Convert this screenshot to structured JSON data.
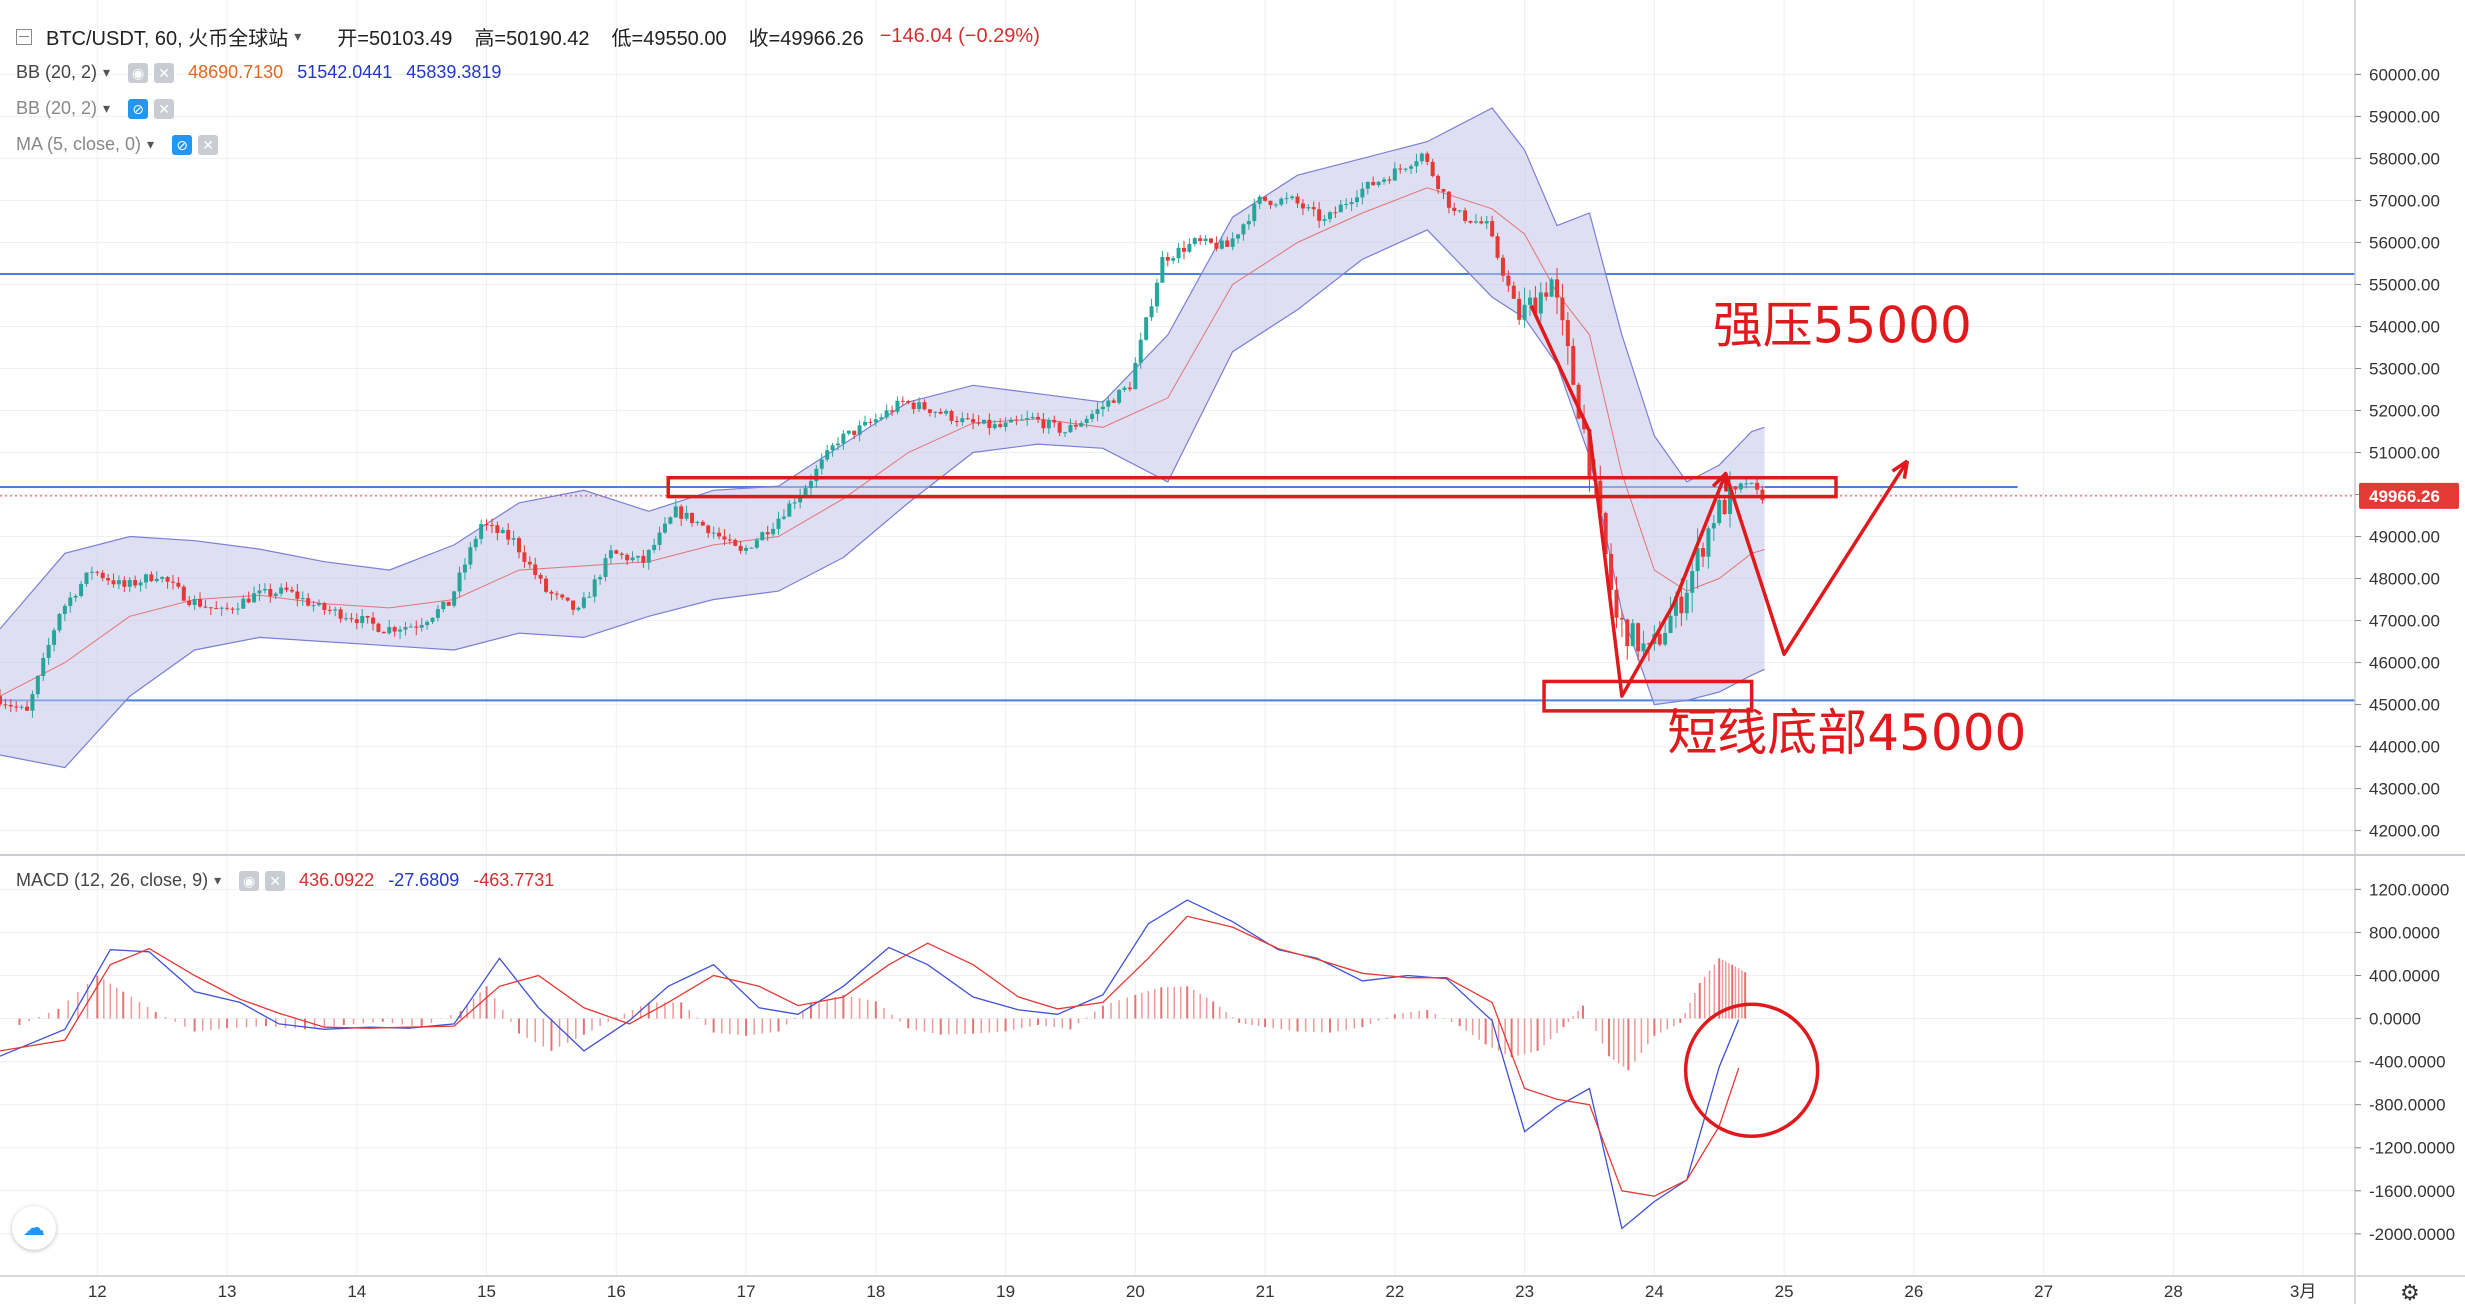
{
  "header": {
    "symbol": "BTC/USDT, 60, 火币全球站",
    "open_label": "开=50103.49",
    "high_label": "高=50190.42",
    "low_label": "低=49550.00",
    "close_label": "收=49966.26",
    "change_label": "−146.04 (−0.29%)"
  },
  "indicators": {
    "bb1": {
      "label": "BB (20, 2)",
      "basis": "48690.7130",
      "upper": "51542.0441",
      "lower": "45839.3819"
    },
    "bb2": {
      "label": "BB (20, 2)"
    },
    "ma": {
      "label": "MA (5, close, 0)"
    },
    "macd": {
      "label": "MACD (12, 26, close, 9)",
      "hist": "436.0922",
      "macd": "-27.6809",
      "signal": "-463.7731"
    }
  },
  "icons": {
    "collapse": "collapse-square-icon",
    "chevron": "chevron-down-icon",
    "eye": "eye-icon",
    "eye_off": "eye-off-icon",
    "close": "close-icon",
    "logo": "cloud-logo-icon",
    "settings": "gear-icon"
  },
  "colors": {
    "up": "#26a69a",
    "down": "#e53935",
    "band_fill": "#c5c4ea",
    "band_line": "#7b7fd6",
    "annotation": "#e0191c",
    "hline": "#4a7ee3",
    "macd_line": "#3f51d6",
    "signal_line": "#e53935",
    "price_tag": "#e53935"
  },
  "annotations": {
    "resistance": "强压55000",
    "support": "短线底部45000"
  },
  "chart_data": [
    {
      "type": "candlestick",
      "title": "",
      "x_ticks": [
        "12",
        "13",
        "14",
        "15",
        "16",
        "17",
        "18",
        "19",
        "20",
        "21",
        "22",
        "23",
        "24",
        "25",
        "26",
        "27",
        "28",
        "3月"
      ],
      "y_ticks": [
        "60000.00",
        "59000.00",
        "58000.00",
        "57000.00",
        "56000.00",
        "55000.00",
        "54000.00",
        "53000.00",
        "52000.00",
        "51000.00",
        "50000.00",
        "49000.00",
        "48000.00",
        "47000.00",
        "46000.00",
        "45000.00",
        "44000.00",
        "43000.00",
        "42000.00"
      ],
      "ylim": [
        41800,
        61200
      ],
      "xlim": [
        11.25,
        29.4
      ],
      "last_price": "49966.26",
      "horizontal_lines": [
        55250,
        50180,
        45100
      ],
      "price_path": [
        [
          11.25,
          45200
        ],
        [
          11.5,
          44800
        ],
        [
          11.75,
          47200
        ],
        [
          12.0,
          48200
        ],
        [
          12.25,
          47800
        ],
        [
          12.5,
          48100
        ],
        [
          12.75,
          47500
        ],
        [
          13.0,
          47200
        ],
        [
          13.25,
          47600
        ],
        [
          13.5,
          47700
        ],
        [
          13.75,
          47300
        ],
        [
          14.0,
          47100
        ],
        [
          14.25,
          46800
        ],
        [
          14.5,
          46900
        ],
        [
          14.75,
          47400
        ],
        [
          15.0,
          49300
        ],
        [
          15.25,
          48900
        ],
        [
          15.5,
          47700
        ],
        [
          15.75,
          47200
        ],
        [
          16.0,
          48600
        ],
        [
          16.25,
          48400
        ],
        [
          16.5,
          49600
        ],
        [
          16.75,
          49200
        ],
        [
          17.0,
          48600
        ],
        [
          17.25,
          49300
        ],
        [
          17.5,
          50200
        ],
        [
          17.75,
          51300
        ],
        [
          18.0,
          51700
        ],
        [
          18.25,
          52200
        ],
        [
          18.5,
          52000
        ],
        [
          18.75,
          51700
        ],
        [
          19.0,
          51600
        ],
        [
          19.25,
          51800
        ],
        [
          19.5,
          51500
        ],
        [
          19.75,
          52000
        ],
        [
          20.0,
          52600
        ],
        [
          20.25,
          55600
        ],
        [
          20.5,
          56000
        ],
        [
          20.75,
          55900
        ],
        [
          21.0,
          57000
        ],
        [
          21.25,
          57000
        ],
        [
          21.5,
          56500
        ],
        [
          21.75,
          57200
        ],
        [
          22.0,
          57600
        ],
        [
          22.25,
          58100
        ],
        [
          22.5,
          56700
        ],
        [
          22.75,
          56400
        ],
        [
          23.0,
          54200
        ],
        [
          23.25,
          55100
        ],
        [
          23.5,
          51500
        ],
        [
          23.75,
          47000
        ],
        [
          24.0,
          46200
        ],
        [
          24.25,
          47500
        ],
        [
          24.5,
          49500
        ],
        [
          24.75,
          50300
        ],
        [
          24.85,
          49966
        ]
      ],
      "bollinger": {
        "x": [
          11.25,
          11.75,
          12.25,
          12.75,
          13.25,
          13.75,
          14.25,
          14.75,
          15.25,
          15.75,
          16.25,
          16.75,
          17.25,
          17.75,
          18.25,
          18.75,
          19.25,
          19.75,
          20.25,
          20.75,
          21.25,
          21.75,
          22.25,
          22.75,
          23.0,
          23.25,
          23.5,
          23.75,
          24.0,
          24.25,
          24.5,
          24.75,
          24.85
        ],
        "upper": [
          46800,
          48600,
          49000,
          48900,
          48700,
          48400,
          48200,
          48800,
          49800,
          50100,
          49600,
          50100,
          50200,
          51200,
          52200,
          52600,
          52400,
          52200,
          53800,
          56600,
          57600,
          58000,
          58400,
          59200,
          58200,
          56400,
          56700,
          53800,
          51400,
          50300,
          50700,
          51500,
          51600
        ],
        "basis": [
          45200,
          46000,
          47100,
          47500,
          47600,
          47400,
          47300,
          47500,
          48200,
          48300,
          48400,
          48800,
          49000,
          49900,
          51000,
          51700,
          51800,
          51600,
          52300,
          55000,
          56000,
          56700,
          57300,
          56800,
          56200,
          54800,
          53800,
          50500,
          48200,
          47700,
          48000,
          48600,
          48690
        ],
        "lower": [
          43800,
          43500,
          45200,
          46300,
          46600,
          46500,
          46400,
          46300,
          46700,
          46600,
          47100,
          47500,
          47700,
          48500,
          49800,
          51000,
          51200,
          51100,
          50300,
          53400,
          54400,
          55600,
          56300,
          54700,
          54200,
          53100,
          50900,
          47200,
          45000,
          45100,
          45300,
          45700,
          45840
        ]
      },
      "drawn_path": [
        [
          23.05,
          54500
        ],
        [
          23.5,
          51500
        ],
        [
          23.75,
          45200
        ],
        [
          24.15,
          47400
        ],
        [
          24.55,
          50500
        ],
        [
          25.0,
          46200
        ],
        [
          25.95,
          50800
        ]
      ],
      "boxes": [
        {
          "x0": 16.4,
          "x1": 25.4,
          "y0": 49950,
          "y1": 50400
        },
        {
          "x0": 23.15,
          "x1": 24.75,
          "y0": 44850,
          "y1": 45550
        }
      ]
    },
    {
      "type": "line",
      "title": "",
      "y_ticks": [
        "1200.0000",
        "800.0000",
        "400.0000",
        "0.0000",
        "-400.0000",
        "-800.0000",
        "-1200.0000",
        "-1600.0000",
        "-2000.0000"
      ],
      "ylim": [
        -2280,
        1380
      ],
      "x": [
        11.25,
        11.75,
        12.1,
        12.4,
        12.75,
        13.1,
        13.4,
        13.75,
        14.1,
        14.4,
        14.75,
        15.1,
        15.4,
        15.75,
        16.1,
        16.4,
        16.75,
        17.1,
        17.4,
        17.75,
        18.1,
        18.4,
        18.75,
        19.1,
        19.4,
        19.75,
        20.1,
        20.4,
        20.75,
        21.1,
        21.4,
        21.75,
        22.1,
        22.4,
        22.75,
        23.0,
        23.25,
        23.5,
        23.75,
        24.0,
        24.25,
        24.5,
        24.65
      ],
      "series": [
        {
          "values": [
            -350,
            -100,
            640,
            620,
            250,
            150,
            -50,
            -100,
            -80,
            -90,
            -50,
            560,
            100,
            -300,
            -20,
            300,
            500,
            100,
            40,
            300,
            660,
            500,
            200,
            80,
            40,
            220,
            880,
            1100,
            900,
            640,
            560,
            350,
            400,
            370,
            -20,
            -1050,
            -820,
            -650,
            -1950,
            -1700,
            -1500,
            -450,
            -10
          ]
        },
        {
          "values": [
            -300,
            -200,
            500,
            650,
            400,
            180,
            50,
            -80,
            -90,
            -80,
            -70,
            300,
            400,
            100,
            -50,
            150,
            400,
            300,
            120,
            200,
            500,
            700,
            500,
            200,
            90,
            150,
            560,
            950,
            850,
            650,
            550,
            420,
            380,
            380,
            150,
            -650,
            -750,
            -800,
            -1600,
            -1650,
            -1500,
            -1000,
            -460
          ]
        }
      ],
      "histogram": [
        [
          11.4,
          -60
        ],
        [
          11.7,
          90
        ],
        [
          12.0,
          400
        ],
        [
          12.2,
          250
        ],
        [
          12.45,
          60
        ],
        [
          12.75,
          -120
        ],
        [
          13.0,
          -90
        ],
        [
          13.3,
          -70
        ],
        [
          13.6,
          -100
        ],
        [
          13.9,
          -60
        ],
        [
          14.2,
          -30
        ],
        [
          14.5,
          -80
        ],
        [
          14.8,
          70
        ],
        [
          15.0,
          300
        ],
        [
          15.25,
          -140
        ],
        [
          15.5,
          -300
        ],
        [
          15.75,
          -150
        ],
        [
          16.0,
          10
        ],
        [
          16.25,
          150
        ],
        [
          16.5,
          150
        ],
        [
          16.75,
          -130
        ],
        [
          17.0,
          -160
        ],
        [
          17.25,
          -120
        ],
        [
          17.5,
          140
        ],
        [
          17.75,
          220
        ],
        [
          18.0,
          160
        ],
        [
          18.25,
          -90
        ],
        [
          18.5,
          -150
        ],
        [
          18.75,
          -140
        ],
        [
          19.0,
          -120
        ],
        [
          19.25,
          -60
        ],
        [
          19.5,
          -100
        ],
        [
          19.75,
          120
        ],
        [
          20.0,
          220
        ],
        [
          20.2,
          290
        ],
        [
          20.4,
          300
        ],
        [
          20.6,
          160
        ],
        [
          20.8,
          -40
        ],
        [
          21.0,
          -80
        ],
        [
          21.25,
          -120
        ],
        [
          21.5,
          -130
        ],
        [
          21.75,
          -80
        ],
        [
          22.0,
          40
        ],
        [
          22.25,
          80
        ],
        [
          22.5,
          -70
        ],
        [
          22.7,
          -240
        ],
        [
          22.9,
          -360
        ],
        [
          23.1,
          -300
        ],
        [
          23.3,
          -80
        ],
        [
          23.45,
          120
        ],
        [
          23.65,
          -350
        ],
        [
          23.8,
          -480
        ],
        [
          24.0,
          -160
        ],
        [
          24.2,
          -40
        ],
        [
          24.35,
          330
        ],
        [
          24.5,
          560
        ],
        [
          24.6,
          500
        ],
        [
          24.7,
          430
        ]
      ]
    }
  ]
}
